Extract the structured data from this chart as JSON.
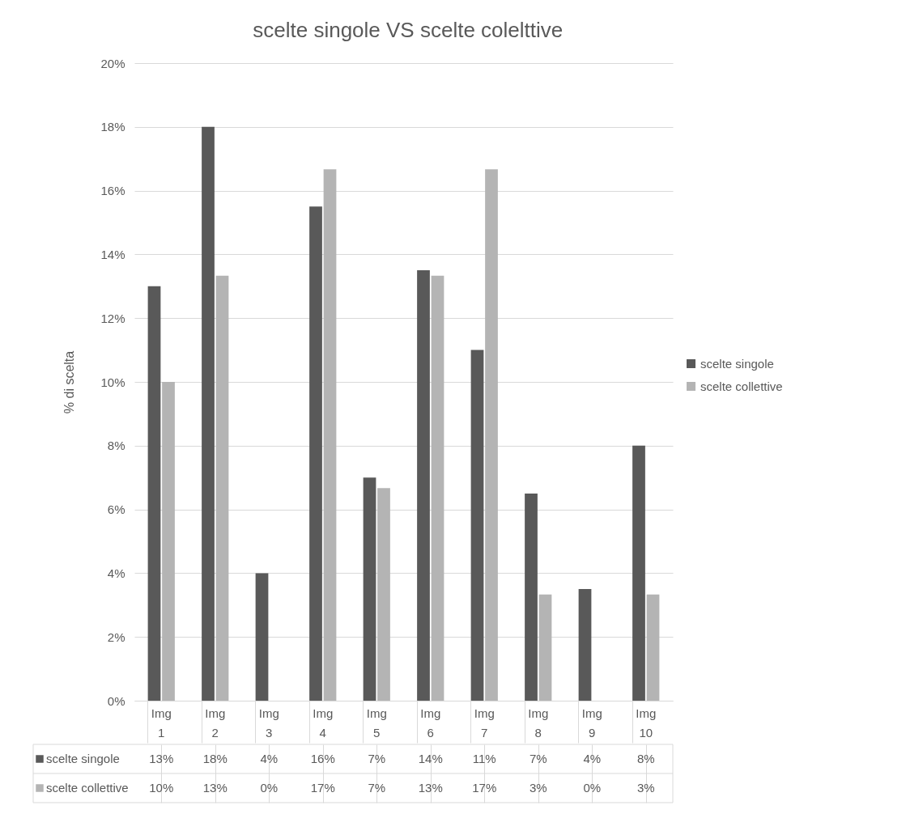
{
  "chart_data": {
    "type": "bar",
    "title": "scelte singole VS scelte colelttive",
    "ylabel": "% di scelta",
    "categories": [
      "Img 1",
      "Img 2",
      "Img 3",
      "Img 4",
      "Img 5",
      "Img 6",
      "Img 7",
      "Img 8",
      "Img 9",
      "Img 10"
    ],
    "series": [
      {
        "name": "scelte singole",
        "color": "#595959",
        "values": [
          13,
          18,
          4,
          15.5,
          7,
          13.5,
          11,
          6.5,
          3.5,
          8
        ],
        "value_labels": [
          "13%",
          "18%",
          "4%",
          "16%",
          "7%",
          "14%",
          "11%",
          "7%",
          "4%",
          "8%"
        ]
      },
      {
        "name": "scelte collettive",
        "color": "#b4b4b4",
        "values": [
          10,
          13.33,
          0,
          16.67,
          6.67,
          13.33,
          16.67,
          3.33,
          0,
          3.33
        ],
        "value_labels": [
          "10%",
          "13%",
          "0%",
          "17%",
          "7%",
          "13%",
          "17%",
          "3%",
          "0%",
          "3%"
        ]
      }
    ],
    "ylim": [
      0,
      20
    ],
    "yticks": [
      {
        "value": 0,
        "label": "0%"
      },
      {
        "value": 2,
        "label": "2%"
      },
      {
        "value": 4,
        "label": "4%"
      },
      {
        "value": 6,
        "label": "6%"
      },
      {
        "value": 8,
        "label": "8%"
      },
      {
        "value": 10,
        "label": "10%"
      },
      {
        "value": 12,
        "label": "12%"
      },
      {
        "value": 14,
        "label": "14%"
      },
      {
        "value": 16,
        "label": "16%"
      },
      {
        "value": 18,
        "label": "18%"
      },
      {
        "value": 20,
        "label": "20%"
      }
    ],
    "grid": "y",
    "legend": "right"
  }
}
